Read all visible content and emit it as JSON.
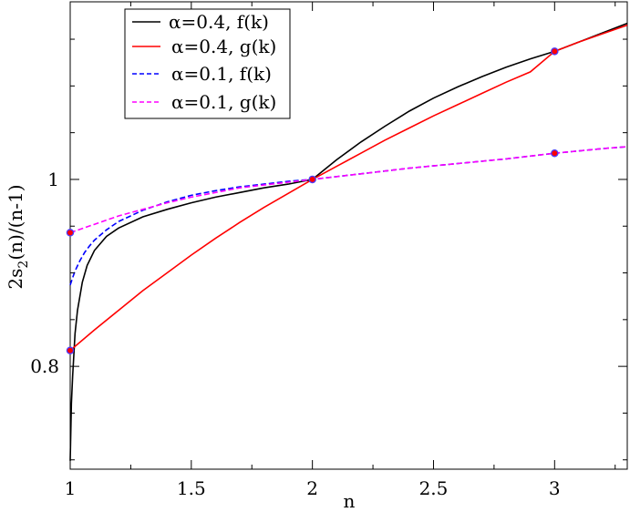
{
  "chart_data": {
    "type": "line",
    "xlabel": "n",
    "ylabel_main": "2s",
    "ylabel_sub": "2",
    "ylabel_rest": "(n)/(n-1)",
    "xlim": [
      1,
      3.3
    ],
    "ylim": [
      0.69,
      1.19
    ],
    "x_ticks": [
      1,
      1.5,
      2,
      2.5,
      3
    ],
    "x_tick_labels": [
      "1",
      "1.5",
      "2",
      "2.5",
      "3"
    ],
    "y_ticks": [
      0.8,
      1
    ],
    "y_tick_labels": [
      "0.8",
      "1"
    ],
    "grid": false,
    "legend_position": "top-left",
    "series": [
      {
        "name": "α=0.4, f(k)",
        "color": "#000000",
        "dash": "solid",
        "x": [
          1.0,
          1.005,
          1.01,
          1.02,
          1.03,
          1.05,
          1.07,
          1.1,
          1.15,
          1.2,
          1.3,
          1.4,
          1.5,
          1.6,
          1.7,
          1.8,
          1.9,
          2.0,
          2.1,
          2.2,
          2.3,
          2.4,
          2.5,
          2.6,
          2.7,
          2.8,
          2.9,
          3.0,
          3.1,
          3.2,
          3.3
        ],
        "y": [
          0.699,
          0.76,
          0.79,
          0.835,
          0.86,
          0.89,
          0.908,
          0.924,
          0.939,
          0.948,
          0.96,
          0.968,
          0.975,
          0.981,
          0.986,
          0.991,
          0.995,
          1.0,
          1.021,
          1.04,
          1.057,
          1.073,
          1.087,
          1.099,
          1.11,
          1.12,
          1.129,
          1.137,
          1.147,
          1.157,
          1.167
        ]
      },
      {
        "name": "α=0.4, g(k)",
        "color": "#ff0000",
        "dash": "solid",
        "x": [
          1.0,
          1.1,
          1.2,
          1.3,
          1.4,
          1.5,
          1.6,
          1.7,
          1.8,
          1.9,
          2.0,
          2.1,
          2.2,
          2.3,
          2.4,
          2.5,
          2.6,
          2.7,
          2.8,
          2.9,
          3.0,
          3.1,
          3.2,
          3.3
        ],
        "y": [
          0.817,
          0.839,
          0.86,
          0.881,
          0.9,
          0.919,
          0.937,
          0.954,
          0.97,
          0.985,
          1.0,
          1.014,
          1.028,
          1.042,
          1.055,
          1.068,
          1.08,
          1.092,
          1.104,
          1.115,
          1.137,
          1.147,
          1.156,
          1.165
        ]
      },
      {
        "name": "α=0.1, f(k)",
        "color": "#0000ff",
        "dash": "dashed",
        "x": [
          1.0,
          1.01,
          1.02,
          1.04,
          1.06,
          1.08,
          1.1,
          1.15,
          1.2,
          1.3,
          1.4,
          1.5,
          1.6,
          1.7,
          1.8,
          1.9,
          2.0,
          2.2,
          2.4,
          2.6,
          2.8,
          3.0,
          3.2,
          3.3
        ],
        "y": [
          0.887,
          0.895,
          0.902,
          0.913,
          0.922,
          0.929,
          0.935,
          0.946,
          0.955,
          0.967,
          0.976,
          0.983,
          0.988,
          0.992,
          0.995,
          0.998,
          1.0,
          1.006,
          1.012,
          1.017,
          1.022,
          1.028,
          1.033,
          1.035
        ]
      },
      {
        "name": "α=0.1, g(k)",
        "color": "#ff00ff",
        "dash": "dashed",
        "x": [
          1.0,
          1.1,
          1.2,
          1.3,
          1.4,
          1.5,
          1.6,
          1.7,
          1.8,
          1.9,
          2.0,
          2.2,
          2.4,
          2.6,
          2.8,
          3.0,
          3.2,
          3.3
        ],
        "y": [
          0.943,
          0.952,
          0.961,
          0.968,
          0.975,
          0.981,
          0.986,
          0.991,
          0.994,
          0.997,
          1.0,
          1.006,
          1.012,
          1.017,
          1.022,
          1.028,
          1.033,
          1.035
        ]
      }
    ],
    "markers": {
      "fill": "#ff0000",
      "stroke": "#4b3cff",
      "points": [
        {
          "x": 1,
          "y": 0.817
        },
        {
          "x": 1,
          "y": 0.943
        },
        {
          "x": 2,
          "y": 1.0
        },
        {
          "x": 3,
          "y": 1.028
        },
        {
          "x": 3,
          "y": 1.137
        }
      ]
    }
  }
}
